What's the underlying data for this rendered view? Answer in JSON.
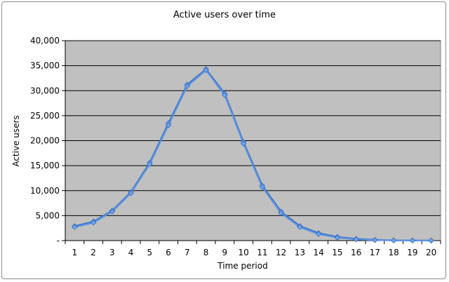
{
  "chart_data": {
    "type": "line",
    "title": "Active users over time",
    "xlabel": "Time period",
    "ylabel": "Active users",
    "categories": [
      "1",
      "2",
      "3",
      "4",
      "5",
      "6",
      "7",
      "8",
      "9",
      "10",
      "11",
      "12",
      "13",
      "14",
      "15",
      "16",
      "17",
      "18",
      "19",
      "20"
    ],
    "ylim": [
      0,
      40000
    ],
    "yticks": [
      0,
      5000,
      10000,
      15000,
      20000,
      25000,
      30000,
      35000,
      40000
    ],
    "ytick_labels": [
      "-",
      "5,000",
      "10,000",
      "15,000",
      "20,000",
      "25,000",
      "30,000",
      "35,000",
      "40,000"
    ],
    "grid": true,
    "legend": "none",
    "series": [
      {
        "values": [
          2900,
          3800,
          6000,
          9700,
          15600,
          23500,
          31200,
          34300,
          29400,
          19700,
          11000,
          5800,
          2900,
          1500,
          750,
          350,
          150,
          60,
          30,
          10
        ]
      },
      {
        "values": [
          2700,
          3600,
          5800,
          9500,
          15300,
          23100,
          30900,
          34100,
          29100,
          19400,
          10700,
          5500,
          2700,
          1300,
          600,
          250,
          100,
          40,
          15,
          5
        ]
      }
    ],
    "colors": {
      "plot_background": "#c0c0c0",
      "gridline": "#000000",
      "series_line": "#5b93e3",
      "series_line_dark": "#3a6fbf",
      "marker": "#6fa3ee"
    }
  }
}
